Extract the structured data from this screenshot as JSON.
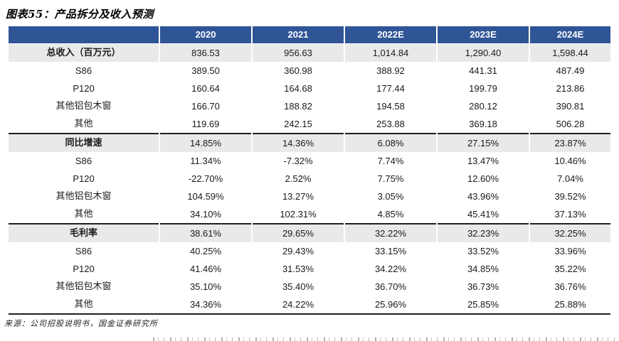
{
  "title": "图表55：产品拆分及收入预测",
  "source": "来源：公司招股说明书，国金证券研究所",
  "colors": {
    "header_bg": "#2F5597",
    "band_bg": "#E9E9E9",
    "rule": "#1F1F1F"
  },
  "table": {
    "columns": [
      "",
      "2020",
      "2021",
      "2022E",
      "2023E",
      "2024E"
    ],
    "sections": [
      {
        "label": "总收入（百万元）",
        "values": [
          "836.53",
          "956.63",
          "1,014.84",
          "1,290.40",
          "1,598.44"
        ],
        "rows": [
          {
            "label": "S86",
            "values": [
              "389.50",
              "360.98",
              "388.92",
              "441.31",
              "487.49"
            ]
          },
          {
            "label": "P120",
            "values": [
              "160.64",
              "164.68",
              "177.44",
              "199.79",
              "213.86"
            ]
          },
          {
            "label": "其他铝包木窗",
            "values": [
              "166.70",
              "188.82",
              "194.58",
              "280.12",
              "390.81"
            ]
          },
          {
            "label": "其他",
            "values": [
              "119.69",
              "242.15",
              "253.88",
              "369.18",
              "506.28"
            ]
          }
        ]
      },
      {
        "label": "同比增速",
        "values": [
          "14.85%",
          "14.36%",
          "6.08%",
          "27.15%",
          "23.87%"
        ],
        "rows": [
          {
            "label": "S86",
            "values": [
              "11.34%",
              "-7.32%",
              "7.74%",
              "13.47%",
              "10.46%"
            ]
          },
          {
            "label": "P120",
            "values": [
              "-22.70%",
              "2.52%",
              "7.75%",
              "12.60%",
              "7.04%"
            ]
          },
          {
            "label": "其他铝包木窗",
            "values": [
              "104.59%",
              "13.27%",
              "3.05%",
              "43.96%",
              "39.52%"
            ]
          },
          {
            "label": "其他",
            "values": [
              "34.10%",
              "102.31%",
              "4.85%",
              "45.41%",
              "37.13%"
            ]
          }
        ]
      },
      {
        "label": "毛利率",
        "values": [
          "38.61%",
          "29.65%",
          "32.22%",
          "32.23%",
          "32.25%"
        ],
        "rows": [
          {
            "label": "S86",
            "values": [
              "40.25%",
              "29.43%",
              "33.15%",
              "33.52%",
              "33.96%"
            ]
          },
          {
            "label": "P120",
            "values": [
              "41.46%",
              "31.53%",
              "34.22%",
              "34.85%",
              "35.22%"
            ]
          },
          {
            "label": "其他铝包木窗",
            "values": [
              "35.10%",
              "35.40%",
              "36.70%",
              "36.73%",
              "36.76%"
            ]
          },
          {
            "label": "其他",
            "values": [
              "34.36%",
              "24.22%",
              "25.96%",
              "25.85%",
              "25.88%"
            ]
          }
        ]
      }
    ]
  }
}
